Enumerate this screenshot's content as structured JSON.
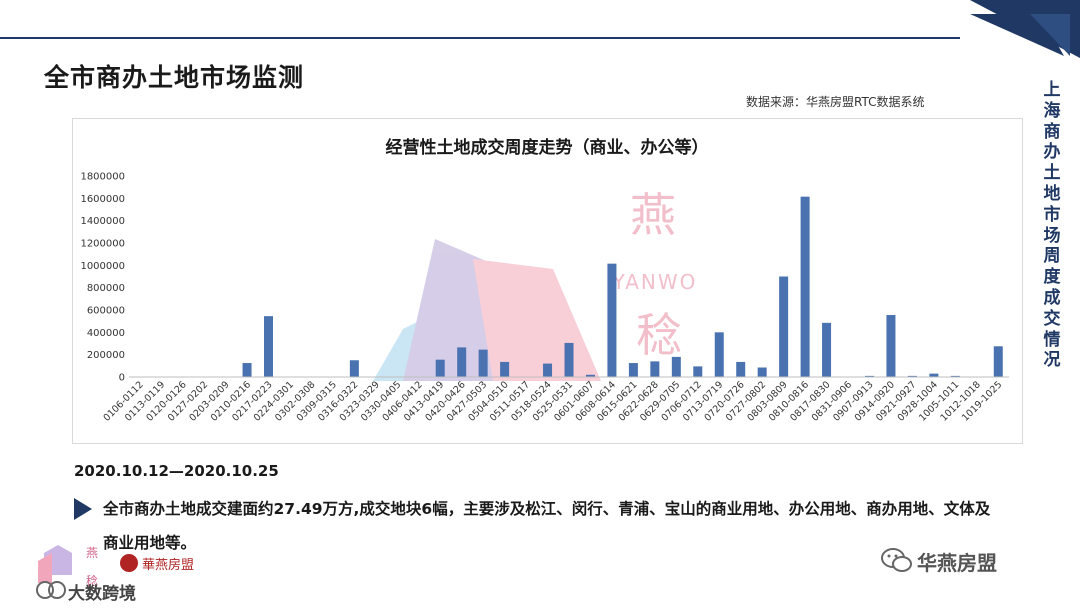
{
  "header": {
    "title": "全市商办土地市场监测",
    "source": "数据来源：华燕房盟RTC数据系统",
    "side_title": "上海商办土地市场周度成交情况"
  },
  "chart_data": {
    "type": "bar",
    "title": "经营性土地成交周度走势（商业、办公等）",
    "xlabel": "",
    "ylabel": "",
    "ylim": [
      0,
      1800000
    ],
    "yticks": [
      0,
      200000,
      400000,
      600000,
      800000,
      1000000,
      1200000,
      1400000,
      1600000,
      1800000
    ],
    "ytick_labels": [
      "0",
      "200000",
      "400000",
      "600000",
      "800000",
      "1000000",
      "1200000",
      "1400000",
      "1600000",
      "1800000"
    ],
    "grid": false,
    "color": "#4a72b0",
    "categories": [
      "0106-0112",
      "0113-0119",
      "0120-0126",
      "0127-0202",
      "0203-0209",
      "0210-0216",
      "0217-0223",
      "0224-0301",
      "0302-0308",
      "0309-0315",
      "0316-0322",
      "0323-0329",
      "0330-0405",
      "0406-0412",
      "0413-0419",
      "0420-0426",
      "0427-0503",
      "0504-0510",
      "0511-0517",
      "0518-0524",
      "0525-0531",
      "0601-0607",
      "0608-0614",
      "0615-0621",
      "0622-0628",
      "0629-0705",
      "0706-0712",
      "0713-0719",
      "0720-0726",
      "0727-0802",
      "0803-0809",
      "0810-0816",
      "0817-0830",
      "0831-0906",
      "0907-0913",
      "0914-0920",
      "0921-0927",
      "0928-1004",
      "1005-1011",
      "1012-1018",
      "1019-1025"
    ],
    "values": [
      0,
      0,
      0,
      0,
      0,
      125000,
      545000,
      0,
      0,
      0,
      150000,
      0,
      0,
      0,
      155000,
      265000,
      245000,
      135000,
      0,
      120000,
      305000,
      20000,
      1015000,
      125000,
      140000,
      180000,
      95000,
      400000,
      135000,
      85000,
      900000,
      1615000,
      485000,
      0,
      10000,
      555000,
      10000,
      30000,
      10000,
      0,
      275000
    ]
  },
  "summary": {
    "date_range": "2020.10.12—2020.10.25",
    "text": "全市商办土地成交建面约27.49万方,成交地块6幅，主要涉及松江、闵行、青浦、宝山的商业用地、办公用地、商办用地、文体及商业用地等。"
  },
  "branding": {
    "watermark_top": "燕",
    "watermark_latin": "YANWO",
    "watermark_bottom": "稔",
    "wechat_name": "华燕房盟",
    "footer_brand": "大数跨境",
    "logo_name": "華燕房盟",
    "logo_char_top": "燕",
    "logo_char_bottom": "稔"
  },
  "colors": {
    "accent": "#1f3864",
    "bar": "#4a72b0"
  }
}
